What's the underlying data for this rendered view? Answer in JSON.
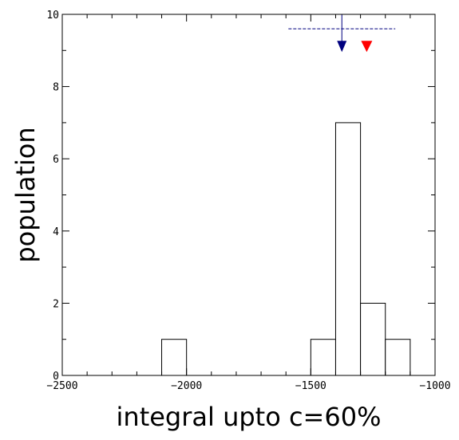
{
  "chart_data": {
    "type": "bar",
    "title": "",
    "xlabel": "integral upto c=60%",
    "ylabel": "population",
    "xlim": [
      -2500,
      -1000
    ],
    "ylim": [
      0,
      10
    ],
    "x_ticks": [
      -2500,
      -2000,
      -1500,
      -1000
    ],
    "x_tick_labels": [
      "−2500",
      "−2000",
      "−1500",
      "−1000"
    ],
    "y_ticks": [
      0,
      2,
      4,
      6,
      8,
      10
    ],
    "y_tick_labels": [
      "0",
      "2",
      "4",
      "6",
      "8",
      "10"
    ],
    "grid": false,
    "bins": [
      {
        "x0": -2100,
        "x1": -2000,
        "count": 1
      },
      {
        "x0": -1500,
        "x1": -1400,
        "count": 1
      },
      {
        "x0": -1400,
        "x1": -1300,
        "count": 7
      },
      {
        "x0": -1300,
        "x1": -1200,
        "count": 2
      },
      {
        "x0": -1200,
        "x1": -1100,
        "count": 1
      }
    ],
    "annotations": {
      "blue_marker": {
        "x": -1375,
        "y_top": 10,
        "y_tip": 9,
        "color": "#00007f"
      },
      "blue_range": {
        "x0": -1590,
        "x1": -1160,
        "y": 9.6,
        "color": "#00007f"
      },
      "red_marker": {
        "x": -1275,
        "y": 9,
        "color": "#ff0000"
      }
    }
  }
}
